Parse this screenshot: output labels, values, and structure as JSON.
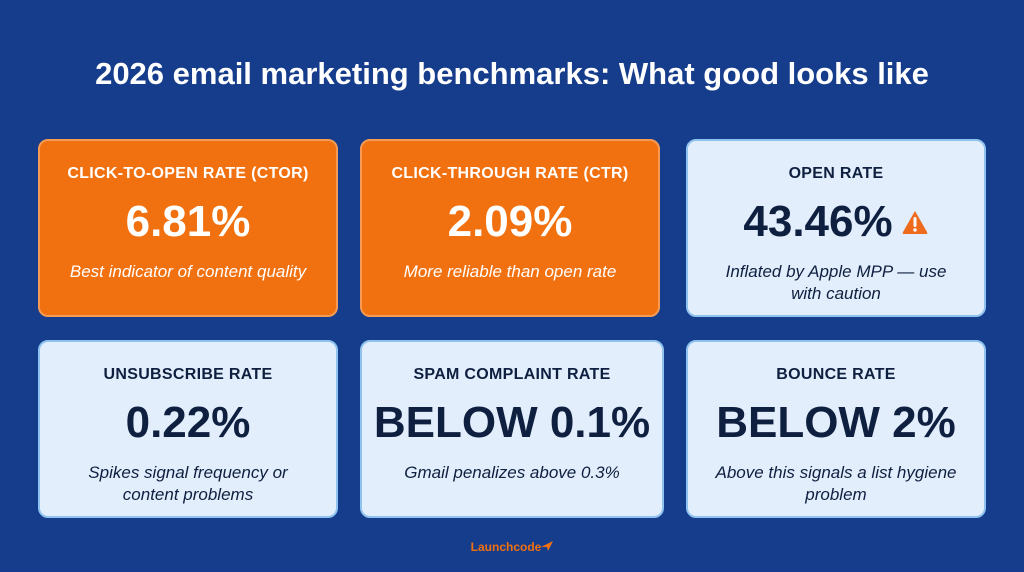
{
  "header": {
    "title": "2026 email marketing benchmarks: What good looks like"
  },
  "cards": [
    {
      "label": "CLICK-TO-OPEN RATE (CTOR)",
      "value": "6.81%",
      "note": "Best indicator of content quality"
    },
    {
      "label": "CLICK-THROUGH RATE (CTR)",
      "value": "2.09%",
      "note": "More reliable than open rate"
    },
    {
      "label": "OPEN RATE",
      "value": "43.46%",
      "note": "Inflated by Apple MPP — use with caution"
    },
    {
      "label": "UNSUBSCRIBE RATE",
      "value": "0.22%",
      "note": "Spikes signal frequency or content problems"
    },
    {
      "label": "SPAM COMPLAINT RATE",
      "value": "BELOW 0.1%",
      "note": "Gmail penalizes above 0.3%"
    },
    {
      "label": "BOUNCE RATE",
      "value": "BELOW 2%",
      "note": "Above this signals a list hygiene problem"
    }
  ],
  "footer": {
    "brand": "Launchcode"
  }
}
